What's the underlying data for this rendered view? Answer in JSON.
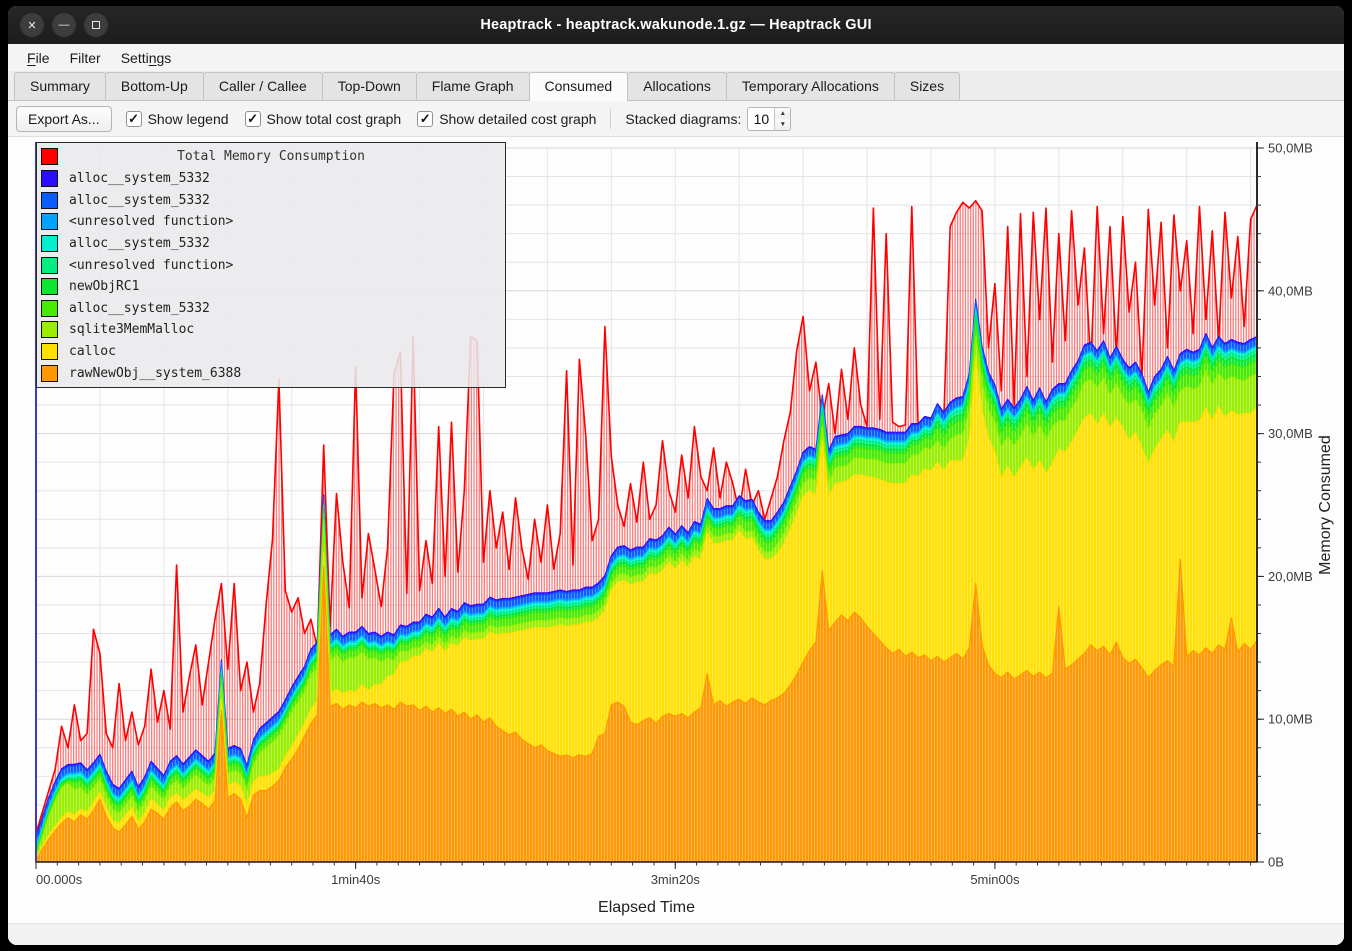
{
  "window": {
    "title": "Heaptrack - heaptrack.wakunode.1.gz — Heaptrack GUI",
    "controls": [
      {
        "name": "close",
        "glyph": "✕"
      },
      {
        "name": "minimize",
        "glyph": "—"
      },
      {
        "name": "maximize",
        "glyph": "square"
      }
    ]
  },
  "menu": {
    "items": [
      {
        "text": "File",
        "mnemonic": "F"
      },
      {
        "text": "Filter",
        "mnemonic": ""
      },
      {
        "text": "Settings",
        "mnemonic": "n"
      }
    ]
  },
  "tabs": {
    "active_index": 5,
    "items": [
      "Summary",
      "Bottom-Up",
      "Caller / Callee",
      "Top-Down",
      "Flame Graph",
      "Consumed",
      "Allocations",
      "Temporary Allocations",
      "Sizes"
    ]
  },
  "toolbar": {
    "export_label": "Export As...",
    "checkboxes": [
      {
        "label": "Show legend",
        "checked": true
      },
      {
        "label": "Show total cost graph",
        "checked": true
      },
      {
        "label": "Show detailed cost graph",
        "checked": true
      }
    ],
    "stacked_label": "Stacked diagrams:",
    "stacked_value": "10"
  },
  "chart_data": {
    "type": "area",
    "legend_title": "Total Memory Consumption",
    "xlabel": "Elapsed Time",
    "ylabel": "Memory Consumed",
    "ylim": [
      0,
      50
    ],
    "grid": {
      "x_step_s": 20,
      "y_step_mb": 2
    },
    "t_step": 2,
    "x_ticks": [
      {
        "t": 0,
        "label": "00.000s"
      },
      {
        "t": 100,
        "label": "1min40s"
      },
      {
        "t": 200,
        "label": "3min20s"
      },
      {
        "t": 300,
        "label": "5min00s"
      }
    ],
    "y_ticks": [
      {
        "v": 0,
        "label": "0B"
      },
      {
        "v": 10,
        "label": "10,0MB"
      },
      {
        "v": 20,
        "label": "20,0MB"
      },
      {
        "v": 30,
        "label": "30,0MB"
      },
      {
        "v": 40,
        "label": "40,0MB"
      },
      {
        "v": 50,
        "label": "50,0MB"
      }
    ],
    "total": {
      "name": "Total Memory Consumption",
      "color": "#ff0000",
      "values": [
        2.0,
        3.5,
        5.0,
        6.5,
        9.5,
        8.0,
        11.0,
        8.5,
        9.0,
        16.3,
        14.6,
        9.0,
        8.0,
        12.5,
        8.5,
        10.5,
        8.2,
        9.5,
        13.5,
        9.8,
        12.0,
        9.3,
        20.8,
        10.5,
        13.0,
        15.2,
        11.0,
        14.0,
        17.0,
        19.5,
        13.5,
        19.5,
        12.0,
        14.0,
        10.5,
        12.5,
        18.0,
        22.6,
        33.8,
        19.0,
        17.5,
        18.5,
        16.0,
        17.0,
        15.0,
        29.2,
        16.5,
        25.8,
        21.0,
        17.8,
        34.7,
        18.5,
        23.0,
        20.5,
        17.9,
        22.0,
        34.2,
        35.7,
        18.8,
        36.8,
        19.0,
        22.5,
        19.5,
        30.5,
        20.0,
        30.8,
        20.3,
        26.0,
        36.8,
        36.5,
        21.0,
        26.0,
        22.0,
        24.5,
        20.5,
        25.5,
        22.0,
        19.8,
        24.0,
        21.0,
        25.0,
        20.5,
        23.0,
        34.4,
        20.8,
        35.2,
        29.8,
        22.5,
        24.0,
        37.5,
        28.4,
        25.0,
        23.5,
        26.5,
        23.8,
        28.0,
        24.0,
        25.0,
        29.5,
        26.0,
        24.5,
        28.5,
        25.5,
        30.5,
        27.0,
        26.0,
        29.0,
        25.5,
        28.0,
        26.5,
        24.5,
        27.5,
        25.0,
        26.0,
        24.0,
        25.5,
        27.0,
        29.5,
        31.5,
        35.8,
        38.2,
        33.0,
        35.0,
        31.0,
        33.5,
        30.0,
        34.5,
        31.0,
        36.0,
        32.0,
        30.5,
        45.8,
        31.0,
        44.0,
        30.8,
        30.5,
        30.6,
        45.9,
        30.4,
        30.6,
        30.5,
        30.8,
        31.0,
        44.5,
        45.5,
        46.2,
        45.8,
        46.3,
        45.6,
        36.0,
        40.5,
        33.0,
        44.5,
        32.0,
        45.4,
        34.0,
        45.5,
        38.0,
        45.8,
        35.0,
        44.0,
        36.5,
        45.6,
        39.0,
        43.0,
        34.8,
        45.9,
        37.0,
        44.5,
        35.5,
        45.2,
        38.5,
        42.0,
        34.0,
        45.7,
        39.0,
        44.8,
        36.0,
        45.3,
        40.0,
        43.5,
        37.0,
        45.9,
        38.0,
        44.2,
        36.5,
        45.5,
        39.5,
        43.8,
        37.5,
        45.0,
        46.0
      ]
    },
    "series": [
      {
        "name": "rawNewObj__system_6388",
        "color": "#ff9800",
        "values": [
          0.1,
          0.9,
          1.6,
          2.2,
          2.7,
          3.1,
          2.8,
          3.3,
          3.0,
          3.6,
          4.4,
          3.2,
          2.4,
          2.1,
          2.6,
          3.2,
          2.3,
          2.8,
          3.7,
          3.4,
          3.0,
          3.8,
          4.2,
          3.6,
          3.9,
          4.4,
          4.1,
          3.7,
          4.3,
          10.6,
          4.5,
          4.8,
          4.4,
          3.1,
          4.7,
          5.0,
          5.0,
          5.3,
          5.7,
          6.6,
          7.2,
          7.9,
          8.8,
          9.7,
          10.3,
          20.7,
          10.9,
          11.1,
          10.7,
          11.0,
          10.8,
          11.2,
          10.9,
          11.1,
          10.8,
          11.0,
          10.7,
          11.2,
          10.9,
          11.0,
          10.6,
          10.9,
          10.5,
          10.8,
          10.4,
          10.7,
          10.2,
          10.5,
          10.0,
          10.3,
          9.8,
          10.1,
          9.5,
          9.2,
          8.9,
          9.1,
          8.6,
          8.3,
          8.0,
          8.2,
          7.8,
          7.6,
          7.4,
          7.5,
          7.3,
          7.5,
          7.4,
          7.6,
          8.8,
          9.0,
          11.0,
          11.2,
          10.9,
          9.8,
          9.6,
          9.9,
          10.1,
          9.7,
          10.2,
          10.4,
          10.2,
          10.4,
          10.1,
          10.5,
          10.8,
          13.2,
          11.0,
          11.3,
          10.9,
          11.2,
          11.4,
          11.1,
          11.5,
          11.2,
          11.0,
          11.3,
          11.5,
          11.8,
          12.4,
          13.1,
          14.0,
          14.8,
          15.4,
          20.4,
          16.2,
          16.8,
          17.3,
          16.9,
          17.5,
          17.1,
          16.5,
          16.0,
          15.5,
          15.0,
          14.6,
          14.9,
          14.4,
          14.7,
          14.3,
          14.5,
          14.1,
          14.4,
          14.0,
          14.3,
          14.6,
          14.2,
          15.0,
          19.5,
          15.2,
          13.8,
          13.2,
          12.9,
          13.3,
          12.8,
          13.1,
          13.4,
          13.0,
          13.3,
          12.9,
          13.2,
          17.9,
          13.5,
          13.8,
          14.2,
          14.6,
          15.2,
          14.8,
          15.1,
          14.5,
          15.4,
          14.3,
          13.9,
          14.2,
          13.6,
          12.9,
          13.4,
          13.8,
          14.1,
          13.7,
          21.2,
          14.4,
          14.8,
          14.5,
          15.0,
          14.6,
          15.2,
          14.9,
          17.1,
          14.7,
          15.3,
          14.9,
          15.5
        ]
      },
      {
        "name": "calloc",
        "color": "#ffdf00",
        "values": [
          0.1,
          0.2,
          0.3,
          0.3,
          0.4,
          0.4,
          0.5,
          0.4,
          0.5,
          0.6,
          0.5,
          0.6,
          0.5,
          0.6,
          0.7,
          0.6,
          0.5,
          0.6,
          0.7,
          0.6,
          0.6,
          0.7,
          0.6,
          0.7,
          0.8,
          0.7,
          0.7,
          0.8,
          0.7,
          0.8,
          0.8,
          0.8,
          0.9,
          0.9,
          0.9,
          1.0,
          1.0,
          0.9,
          0.8,
          0.8,
          0.9,
          1.0,
          0.9,
          1.0,
          1.0,
          1.0,
          0.9,
          1.0,
          1.1,
          1.0,
          1.1,
          1.2,
          1.1,
          1.3,
          1.6,
          2.0,
          2.4,
          2.8,
          3.1,
          3.4,
          3.8,
          4.0,
          4.2,
          4.5,
          4.3,
          4.6,
          4.9,
          5.2,
          5.5,
          5.3,
          5.8,
          6.0,
          6.4,
          6.8,
          7.1,
          7.0,
          7.6,
          8.0,
          8.4,
          8.2,
          8.6,
          8.9,
          9.2,
          9.0,
          9.3,
          9.1,
          9.4,
          9.2,
          8.3,
          8.6,
          8.0,
          8.4,
          8.8,
          9.6,
          10.0,
          9.7,
          10.1,
          10.4,
          10.2,
          10.6,
          10.3,
          10.7,
          10.5,
          10.9,
          10.4,
          9.8,
          11.3,
          11.0,
          11.6,
          11.3,
          11.8,
          11.5,
          11.2,
          10.6,
          10.2,
          9.9,
          10.1,
          10.5,
          10.9,
          11.3,
          11.6,
          11.2,
          10.3,
          9.1,
          9.4,
          9.7,
          9.3,
          9.8,
          9.6,
          10.0,
          10.5,
          10.9,
          11.3,
          11.6,
          11.9,
          11.6,
          12.1,
          12.4,
          12.7,
          13.0,
          13.3,
          13.6,
          13.4,
          13.8,
          13.5,
          13.9,
          14.6,
          15.8,
          16.4,
          15.9,
          15.5,
          14.0,
          14.4,
          14.1,
          14.5,
          14.9,
          14.4,
          14.8,
          14.3,
          14.7,
          11.0,
          15.2,
          15.6,
          16.0,
          16.5,
          16.2,
          15.8,
          16.3,
          15.9,
          15.7,
          16.1,
          15.6,
          15.9,
          15.4,
          15.0,
          15.5,
          15.8,
          16.1,
          15.7,
          9.6,
          16.4,
          16.0,
          16.4,
          16.8,
          16.3,
          16.7,
          16.2,
          14.5,
          16.6,
          16.1,
          16.5,
          16.3
        ]
      },
      {
        "name": "sqlite3MemMalloc",
        "color": "#99ee00",
        "values": [
          0.2,
          0.7,
          1.3,
          1.8,
          2.1,
          2.0,
          1.8,
          1.5,
          1.2,
          1.0,
          0.9,
          0.8,
          0.8,
          0.7,
          0.7,
          0.8,
          0.7,
          0.8,
          0.9,
          0.8,
          0.7,
          0.8,
          0.9,
          0.8,
          0.9,
          1.0,
          0.9,
          0.8,
          0.9,
          1.0,
          0.9,
          0.8,
          0.9,
          1.0,
          1.2,
          1.6,
          2.0,
          2.2,
          2.3,
          2.2,
          2.4,
          2.3,
          2.2,
          2.4,
          2.3,
          2.2,
          2.3,
          2.4,
          2.2,
          2.3,
          2.4,
          2.3,
          2.2,
          1.9,
          1.6,
          1.3,
          1.0,
          0.8,
          0.7,
          0.6,
          0.6,
          0.5,
          0.5,
          0.5,
          0.5,
          0.5,
          0.5,
          0.5,
          0.5,
          0.5,
          0.5,
          0.5,
          0.5,
          0.5,
          0.5,
          0.5,
          0.5,
          0.5,
          0.5,
          0.5,
          0.5,
          0.5,
          0.5,
          0.5,
          0.5,
          0.5,
          0.5,
          0.5,
          0.5,
          0.5,
          0.5,
          0.5,
          0.5,
          0.5,
          0.5,
          0.5,
          0.5,
          0.5,
          0.5,
          0.5,
          0.5,
          0.5,
          0.5,
          0.5,
          0.5,
          0.5,
          0.5,
          0.5,
          0.5,
          0.5,
          0.5,
          0.5,
          0.5,
          0.5,
          0.5,
          0.5,
          0.7,
          0.7,
          0.8,
          0.8,
          0.9,
          0.9,
          1.0,
          1.0,
          1.0,
          1.1,
          1.1,
          1.1,
          1.2,
          1.2,
          1.2,
          1.3,
          1.3,
          1.3,
          1.4,
          1.4,
          1.4,
          1.4,
          1.5,
          1.5,
          1.5,
          1.5,
          1.5,
          1.5,
          1.8,
          1.9,
          2.0,
          1.5,
          1.9,
          2.0,
          2.1,
          2.2,
          2.1,
          2.3,
          2.2,
          2.4,
          2.3,
          2.5,
          2.4,
          2.6,
          2.0,
          2.2,
          2.4,
          2.3,
          2.5,
          2.4,
          2.6,
          2.5,
          2.3,
          2.4,
          2.2,
          2.5,
          2.3,
          2.6,
          2.4,
          2.5,
          2.3,
          2.6,
          2.4,
          2.2,
          2.5,
          2.3,
          2.4,
          2.6,
          2.5,
          2.3,
          2.6,
          2.4,
          2.5,
          2.3,
          2.6,
          2.4
        ]
      },
      {
        "name": "alloc__system_5332",
        "color": "#47ea00",
        "runs": [
          [
            6,
            0.2
          ],
          [
            35,
            0.45
          ],
          [
            20,
            0.5
          ],
          [
            50,
            0.55
          ],
          [
            30,
            0.7
          ],
          [
            51,
            0.9
          ]
        ]
      },
      {
        "name": "newObjRC1",
        "color": "#0ce62e",
        "runs": [
          [
            6,
            0.1
          ],
          [
            35,
            0.2
          ],
          [
            20,
            0.2
          ],
          [
            50,
            0.25
          ],
          [
            30,
            0.3
          ],
          [
            51,
            0.45
          ]
        ]
      },
      {
        "name": "<unresolved function>",
        "color": "#00ee82",
        "runs": [
          [
            6,
            0.08
          ],
          [
            35,
            0.15
          ],
          [
            20,
            0.15
          ],
          [
            50,
            0.2
          ],
          [
            30,
            0.25
          ],
          [
            51,
            0.3
          ]
        ]
      },
      {
        "name": "alloc__system_5332",
        "color": "#00f0cf",
        "const": 0.2
      },
      {
        "name": "<unresolved function>",
        "color": "#00a4ff",
        "const": 0.15
      },
      {
        "name": "alloc__system_5332",
        "color": "#0a5cff",
        "const": 0.45
      },
      {
        "name": "alloc__system_5332",
        "color": "#2a0cff",
        "const": 0.15
      }
    ]
  }
}
